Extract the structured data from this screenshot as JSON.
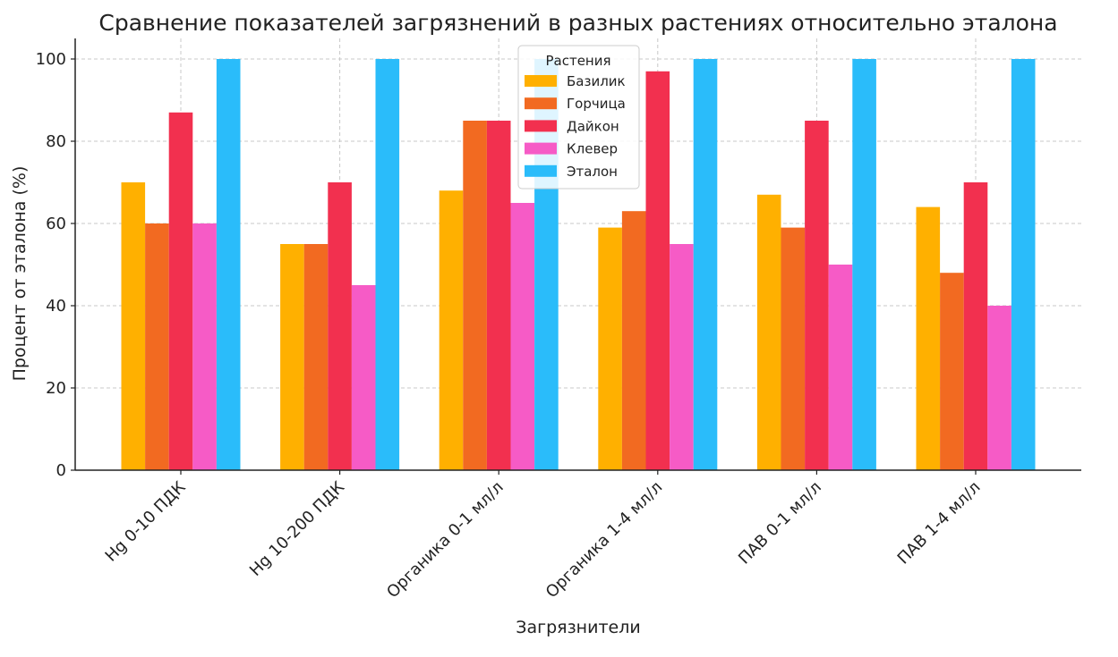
{
  "chart_data": {
    "type": "bar",
    "title": "Сравнение показателей загрязнений в разных растениях относительно эталона",
    "xlabel": "Загрязнители",
    "ylabel": "Процент от эталона (%)",
    "ylim": [
      0,
      105
    ],
    "yticks": [
      0,
      20,
      40,
      60,
      80,
      100
    ],
    "grid": true,
    "legend": {
      "title": "Растения",
      "placement": "top-center"
    },
    "categories": [
      "Hg 0-10 ПДК",
      "Hg 10-200 ПДК",
      "Органика 0-1 мл/л",
      "Органика 1-4 мл/л",
      "ПАВ 0-1 мл/л",
      "ПАВ 1-4 мл/л"
    ],
    "series": [
      {
        "name": "Базилик",
        "color": "#FFB000",
        "values": [
          70,
          55,
          68,
          59,
          67,
          64
        ]
      },
      {
        "name": "Горчица",
        "color": "#F26A21",
        "values": [
          60,
          55,
          85,
          63,
          59,
          48
        ]
      },
      {
        "name": "Дайкон",
        "color": "#F2304F",
        "values": [
          87,
          70,
          85,
          97,
          85,
          70
        ]
      },
      {
        "name": "Клевер",
        "color": "#F65BC6",
        "values": [
          60,
          45,
          65,
          55,
          50,
          40
        ]
      },
      {
        "name": "Эталон",
        "color": "#2ABCFA",
        "values": [
          100,
          100,
          100,
          100,
          100,
          100
        ]
      }
    ]
  }
}
